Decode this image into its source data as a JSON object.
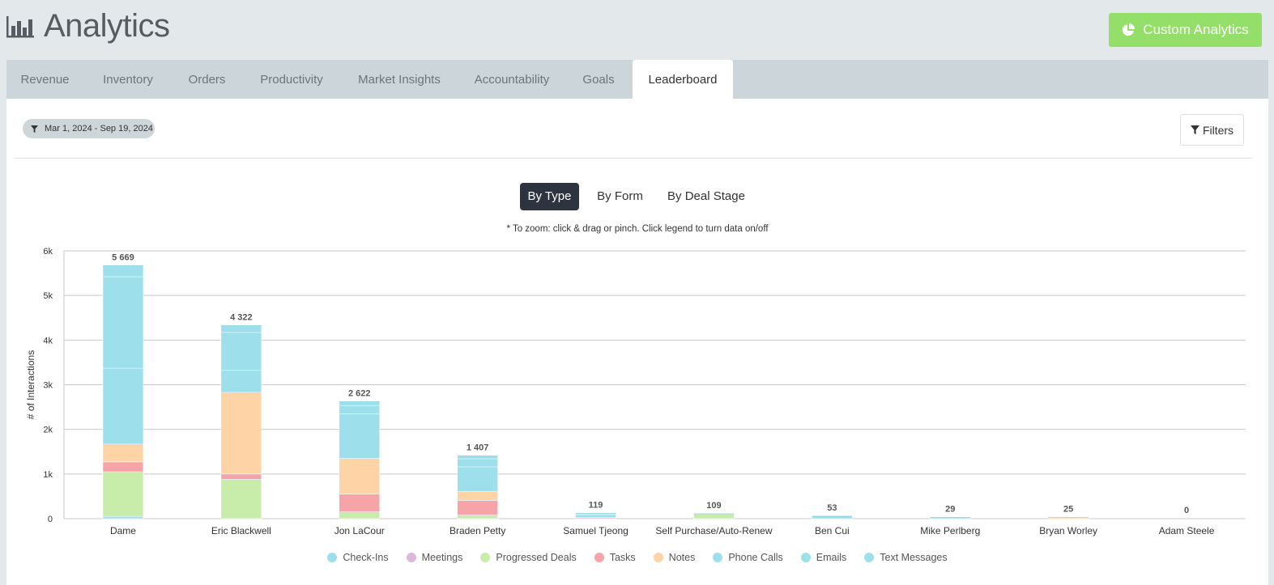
{
  "page": {
    "title": "Analytics",
    "custom_button": "Custom Analytics"
  },
  "tabs": [
    {
      "label": "Revenue",
      "active": false
    },
    {
      "label": "Inventory",
      "active": false
    },
    {
      "label": "Orders",
      "active": false
    },
    {
      "label": "Productivity",
      "active": false
    },
    {
      "label": "Market Insights",
      "active": false
    },
    {
      "label": "Accountability",
      "active": false
    },
    {
      "label": "Goals",
      "active": false
    },
    {
      "label": "Leaderboard",
      "active": true
    }
  ],
  "filter_bar": {
    "date_range": "Mar 1, 2024 - Sep 19, 2024",
    "filters_label": "Filters"
  },
  "views": [
    {
      "label": "By Type",
      "active": true
    },
    {
      "label": "By Form",
      "active": false
    },
    {
      "label": "By Deal Stage",
      "active": false
    }
  ],
  "zoom_note": "* To zoom: click & drag or pinch. Click legend to turn data on/off",
  "colors": {
    "accent_green": "#93df6a",
    "dark_button": "#2d3440",
    "tab_bar": "#cbd5da",
    "background": "#e3e8eb"
  },
  "chart_data": {
    "type": "bar",
    "stacked": true,
    "ylabel": "# of Interactions",
    "xlabel": "",
    "ylim": [
      0,
      6000
    ],
    "yticks": [
      0,
      1000,
      2000,
      3000,
      4000,
      5000,
      6000
    ],
    "ytick_labels": [
      "0",
      "1k",
      "2k",
      "3k",
      "4k",
      "5k",
      "6k"
    ],
    "grid": true,
    "legend_position": "bottom",
    "categories": [
      "Dame",
      "Eric Blackwell",
      "Jon LaCour",
      "Braden Petty",
      "Samuel Tjeong",
      "Self Purchase/Auto-Renew",
      "Ben Cui",
      "Mike Perlberg",
      "Bryan Worley",
      "Adam Steele"
    ],
    "totals": [
      5669,
      4322,
      2622,
      1407,
      119,
      109,
      53,
      29,
      25,
      0
    ],
    "total_labels": [
      "5 669",
      "4 322",
      "2 622",
      "1 407",
      "119",
      "109",
      "53",
      "29",
      "25",
      "0"
    ],
    "series": [
      {
        "name": "Check-Ins",
        "color": "#9ddfea",
        "values": [
          50,
          0,
          0,
          0,
          0,
          0,
          0,
          0,
          0,
          0
        ]
      },
      {
        "name": "Meetings",
        "color": "#dcb8dc",
        "values": [
          0,
          0,
          0,
          0,
          30,
          0,
          0,
          0,
          0,
          0
        ]
      },
      {
        "name": "Progressed Deals",
        "color": "#c8ecaa",
        "values": [
          1000,
          880,
          150,
          80,
          0,
          109,
          0,
          0,
          0,
          0
        ]
      },
      {
        "name": "Tasks",
        "color": "#f6a4a8",
        "values": [
          220,
          120,
          400,
          330,
          0,
          0,
          0,
          0,
          0,
          0
        ]
      },
      {
        "name": "Notes",
        "color": "#fed4a6",
        "values": [
          400,
          1830,
          800,
          200,
          0,
          0,
          0,
          0,
          25,
          0
        ]
      },
      {
        "name": "Phone Calls",
        "color": "#9ddfea",
        "values": [
          1700,
          500,
          1000,
          550,
          60,
          0,
          53,
          29,
          0,
          0
        ]
      },
      {
        "name": "Emails",
        "color": "#9ddfea",
        "values": [
          2050,
          840,
          180,
          180,
          20,
          0,
          0,
          0,
          0,
          0
        ]
      },
      {
        "name": "Text Messages",
        "color": "#9ddfea",
        "values": [
          249,
          152,
          92,
          67,
          9,
          0,
          0,
          0,
          0,
          0
        ]
      }
    ]
  }
}
